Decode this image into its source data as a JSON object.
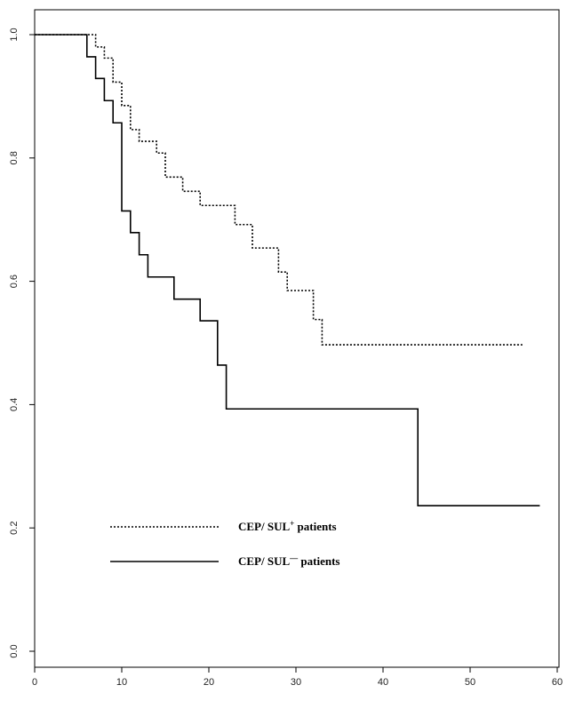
{
  "chart_data": {
    "type": "line",
    "step": true,
    "title": "",
    "xlabel": "",
    "ylabel": "",
    "xlim": [
      0,
      60
    ],
    "ylim": [
      0,
      1
    ],
    "xticks": [
      0,
      10,
      20,
      30,
      40,
      50,
      60
    ],
    "yticks": [
      0.0,
      0.2,
      0.4,
      0.6,
      0.8,
      1.0
    ],
    "xtick_labels": [
      "0",
      "10",
      "20",
      "30",
      "40",
      "50",
      "60"
    ],
    "ytick_labels": [
      "0.0",
      "0.2",
      "0.4",
      "0.6",
      "0.8",
      "1.0"
    ],
    "grid": false,
    "legend_position": "lower-left",
    "series": [
      {
        "name": "CEP/ SUL+ patients",
        "legend": {
          "prefix": "CEP/ SUL",
          "sup": "+",
          "suffix": " patients"
        },
        "line_style": "dotted",
        "color": "#000000",
        "x": [
          0,
          7,
          8,
          9,
          10,
          11,
          12,
          14,
          15,
          17,
          19,
          23,
          25,
          28,
          29,
          32,
          33,
          56
        ],
        "y": [
          1.0,
          0.98,
          0.962,
          0.923,
          0.885,
          0.846,
          0.827,
          0.808,
          0.769,
          0.746,
          0.723,
          0.692,
          0.654,
          0.615,
          0.585,
          0.538,
          0.497,
          0.497
        ]
      },
      {
        "name": "CEP/ SUL− patients",
        "legend": {
          "prefix": "CEP/ SUL",
          "sup": "—",
          "suffix": " patients"
        },
        "line_style": "solid",
        "color": "#000000",
        "x": [
          0,
          6,
          7,
          8,
          9,
          10,
          11,
          12,
          13,
          16,
          19,
          21,
          22,
          44,
          58
        ],
        "y": [
          1.0,
          0.964,
          0.929,
          0.893,
          0.857,
          0.714,
          0.679,
          0.643,
          0.607,
          0.571,
          0.536,
          0.464,
          0.393,
          0.236,
          0.236
        ]
      }
    ]
  }
}
